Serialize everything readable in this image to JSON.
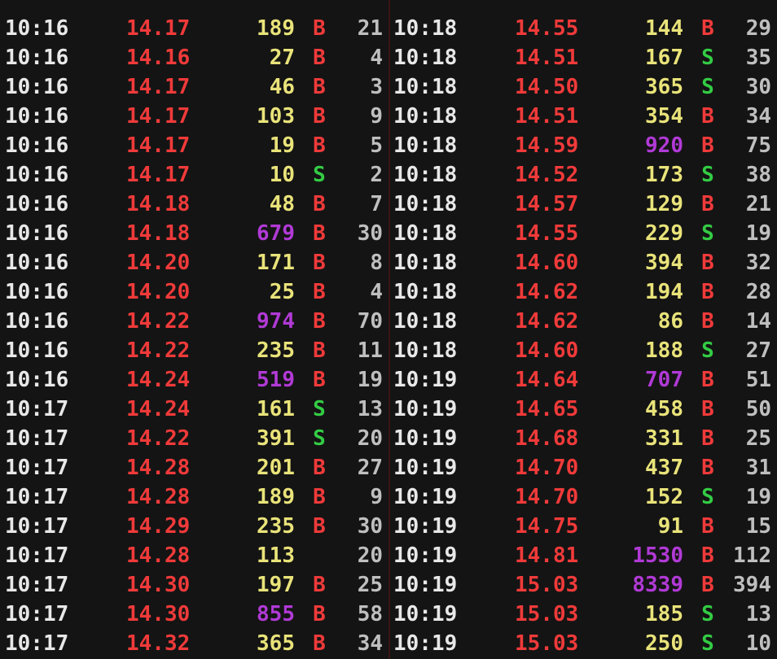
{
  "colors": {
    "background": "#141414",
    "time": "#e8e8e8",
    "price": "#f03a3a",
    "volume": "#e9e37a",
    "large_volume": "#b13ad6",
    "buy": "#f03a3a",
    "sell": "#33cc44",
    "count": "#bfbfbf"
  },
  "left": {
    "rows": [
      {
        "time": "10:16",
        "price": "14.17",
        "vol": "189",
        "side": "B",
        "cnt": "21",
        "big": false
      },
      {
        "time": "10:16",
        "price": "14.16",
        "vol": "27",
        "side": "B",
        "cnt": "4",
        "big": false
      },
      {
        "time": "10:16",
        "price": "14.17",
        "vol": "46",
        "side": "B",
        "cnt": "3",
        "big": false
      },
      {
        "time": "10:16",
        "price": "14.17",
        "vol": "103",
        "side": "B",
        "cnt": "9",
        "big": false
      },
      {
        "time": "10:16",
        "price": "14.17",
        "vol": "19",
        "side": "B",
        "cnt": "5",
        "big": false
      },
      {
        "time": "10:16",
        "price": "14.17",
        "vol": "10",
        "side": "S",
        "cnt": "2",
        "big": false
      },
      {
        "time": "10:16",
        "price": "14.18",
        "vol": "48",
        "side": "B",
        "cnt": "7",
        "big": false
      },
      {
        "time": "10:16",
        "price": "14.18",
        "vol": "679",
        "side": "B",
        "cnt": "30",
        "big": true
      },
      {
        "time": "10:16",
        "price": "14.20",
        "vol": "171",
        "side": "B",
        "cnt": "8",
        "big": false
      },
      {
        "time": "10:16",
        "price": "14.20",
        "vol": "25",
        "side": "B",
        "cnt": "4",
        "big": false
      },
      {
        "time": "10:16",
        "price": "14.22",
        "vol": "974",
        "side": "B",
        "cnt": "70",
        "big": true
      },
      {
        "time": "10:16",
        "price": "14.22",
        "vol": "235",
        "side": "B",
        "cnt": "11",
        "big": false
      },
      {
        "time": "10:16",
        "price": "14.24",
        "vol": "519",
        "side": "B",
        "cnt": "19",
        "big": true
      },
      {
        "time": "10:17",
        "price": "14.24",
        "vol": "161",
        "side": "S",
        "cnt": "13",
        "big": false
      },
      {
        "time": "10:17",
        "price": "14.22",
        "vol": "391",
        "side": "S",
        "cnt": "20",
        "big": false
      },
      {
        "time": "10:17",
        "price": "14.28",
        "vol": "201",
        "side": "B",
        "cnt": "27",
        "big": false
      },
      {
        "time": "10:17",
        "price": "14.28",
        "vol": "189",
        "side": "B",
        "cnt": "9",
        "big": false
      },
      {
        "time": "10:17",
        "price": "14.29",
        "vol": "235",
        "side": "B",
        "cnt": "30",
        "big": false
      },
      {
        "time": "10:17",
        "price": "14.28",
        "vol": "113",
        "side": "",
        "cnt": "20",
        "big": false
      },
      {
        "time": "10:17",
        "price": "14.30",
        "vol": "197",
        "side": "B",
        "cnt": "25",
        "big": false
      },
      {
        "time": "10:17",
        "price": "14.30",
        "vol": "855",
        "side": "B",
        "cnt": "58",
        "big": true
      },
      {
        "time": "10:17",
        "price": "14.32",
        "vol": "365",
        "side": "B",
        "cnt": "34",
        "big": false
      }
    ]
  },
  "right": {
    "rows": [
      {
        "time": "10:18",
        "price": "14.55",
        "vol": "144",
        "side": "B",
        "cnt": "29",
        "big": false
      },
      {
        "time": "10:18",
        "price": "14.51",
        "vol": "167",
        "side": "S",
        "cnt": "35",
        "big": false
      },
      {
        "time": "10:18",
        "price": "14.50",
        "vol": "365",
        "side": "S",
        "cnt": "30",
        "big": false
      },
      {
        "time": "10:18",
        "price": "14.51",
        "vol": "354",
        "side": "B",
        "cnt": "34",
        "big": false
      },
      {
        "time": "10:18",
        "price": "14.59",
        "vol": "920",
        "side": "B",
        "cnt": "75",
        "big": true
      },
      {
        "time": "10:18",
        "price": "14.52",
        "vol": "173",
        "side": "S",
        "cnt": "38",
        "big": false
      },
      {
        "time": "10:18",
        "price": "14.57",
        "vol": "129",
        "side": "B",
        "cnt": "21",
        "big": false
      },
      {
        "time": "10:18",
        "price": "14.55",
        "vol": "229",
        "side": "S",
        "cnt": "19",
        "big": false
      },
      {
        "time": "10:18",
        "price": "14.60",
        "vol": "394",
        "side": "B",
        "cnt": "32",
        "big": false
      },
      {
        "time": "10:18",
        "price": "14.62",
        "vol": "194",
        "side": "B",
        "cnt": "28",
        "big": false
      },
      {
        "time": "10:18",
        "price": "14.62",
        "vol": "86",
        "side": "B",
        "cnt": "14",
        "big": false
      },
      {
        "time": "10:18",
        "price": "14.60",
        "vol": "188",
        "side": "S",
        "cnt": "27",
        "big": false
      },
      {
        "time": "10:19",
        "price": "14.64",
        "vol": "707",
        "side": "B",
        "cnt": "51",
        "big": true
      },
      {
        "time": "10:19",
        "price": "14.65",
        "vol": "458",
        "side": "B",
        "cnt": "50",
        "big": false
      },
      {
        "time": "10:19",
        "price": "14.68",
        "vol": "331",
        "side": "B",
        "cnt": "25",
        "big": false
      },
      {
        "time": "10:19",
        "price": "14.70",
        "vol": "437",
        "side": "B",
        "cnt": "31",
        "big": false
      },
      {
        "time": "10:19",
        "price": "14.70",
        "vol": "152",
        "side": "S",
        "cnt": "19",
        "big": false
      },
      {
        "time": "10:19",
        "price": "14.75",
        "vol": "91",
        "side": "B",
        "cnt": "15",
        "big": false
      },
      {
        "time": "10:19",
        "price": "14.81",
        "vol": "1530",
        "side": "B",
        "cnt": "112",
        "big": true
      },
      {
        "time": "10:19",
        "price": "15.03",
        "vol": "8339",
        "side": "B",
        "cnt": "394",
        "big": true
      },
      {
        "time": "10:19",
        "price": "15.03",
        "vol": "185",
        "side": "S",
        "cnt": "13",
        "big": false
      },
      {
        "time": "10:19",
        "price": "15.03",
        "vol": "250",
        "side": "S",
        "cnt": "10",
        "big": false
      }
    ]
  }
}
